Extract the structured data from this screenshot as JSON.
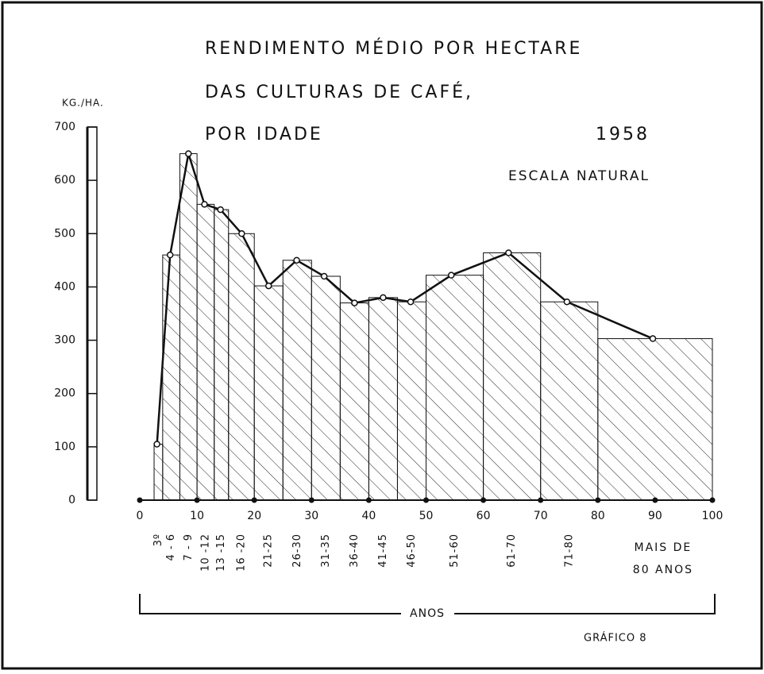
{
  "chart_data": {
    "type": "histogram",
    "title_lines": [
      "RENDIMENTO MÉDIO POR HECTARE",
      "DAS CULTURAS DE CAFÉ,",
      "POR IDADE"
    ],
    "year": "1958",
    "subtitle": "ESCALA NATURAL",
    "y_label": "KG./HA.",
    "x_label": "ANOS",
    "footer": "GRÁFICO 8",
    "categories": [
      "3º",
      "4 - 6",
      "7 - 9",
      "10 -12",
      "13 -15",
      "16 -20",
      "21-25",
      "26-30",
      "31-35",
      "36-40",
      "41-45",
      "46-50",
      "51-60",
      "61-70",
      "71-80",
      "MAIS DE 80 ANOS"
    ],
    "bins": [
      2.5,
      4,
      7,
      10,
      13,
      15.5,
      20,
      25,
      30,
      35,
      40,
      45,
      50,
      60,
      70,
      80,
      100
    ],
    "values": [
      105,
      460,
      650,
      555,
      545,
      500,
      402,
      450,
      420,
      370,
      380,
      372,
      422,
      464,
      372,
      303
    ],
    "points_x": [
      3,
      5.3,
      8.5,
      11.3,
      14.1,
      17.8,
      22.5,
      27.4,
      32.2,
      37.5,
      42.5,
      47.3,
      54.4,
      64.4,
      74.6,
      89.6
    ],
    "xlim": [
      0,
      100
    ],
    "xticks": [
      0,
      10,
      20,
      30,
      40,
      50,
      60,
      70,
      80,
      90,
      100
    ],
    "ylim": [
      0,
      700
    ],
    "yticks": [
      0,
      100,
      200,
      300,
      400,
      500,
      600,
      700
    ],
    "color": "#111111"
  }
}
